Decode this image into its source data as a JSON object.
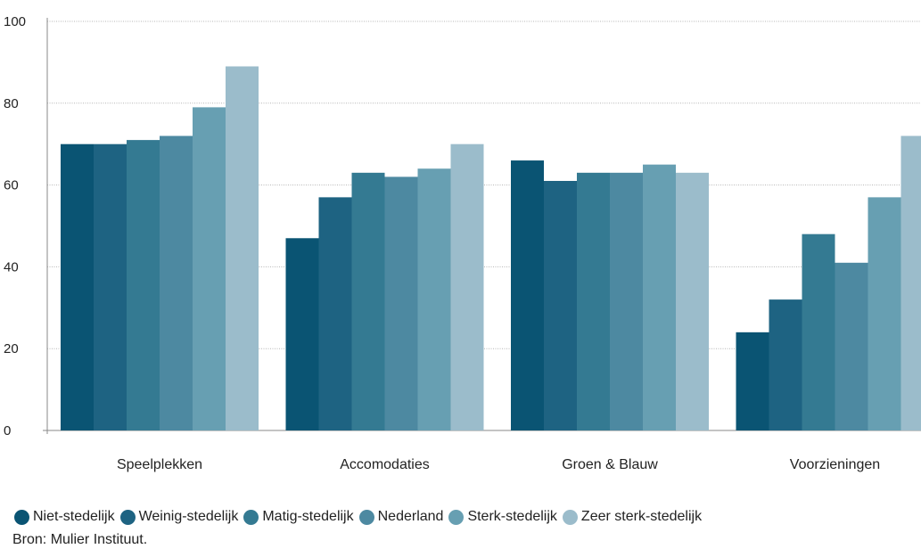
{
  "chart_data": {
    "type": "bar",
    "categories": [
      "Speelplekken",
      "Accomodaties",
      "Groen & Blauw",
      "Voorzieningen"
    ],
    "series": [
      {
        "name": "Niet-stedelijk",
        "color": "#0a5473",
        "values": [
          70,
          47,
          66,
          24
        ]
      },
      {
        "name": "Weinig-stedelijk",
        "color": "#1e6382",
        "values": [
          70,
          57,
          61,
          32
        ]
      },
      {
        "name": "Matig-stedelijk",
        "color": "#347a92",
        "values": [
          71,
          63,
          63,
          48
        ]
      },
      {
        "name": "Nederland",
        "color": "#4d89a1",
        "values": [
          72,
          62,
          63,
          41
        ]
      },
      {
        "name": "Sterk-stedelijk",
        "color": "#679fb2",
        "values": [
          79,
          64,
          65,
          57
        ]
      },
      {
        "name": "Zeer sterk-stedelijk",
        "color": "#9bbccb",
        "values": [
          89,
          70,
          63,
          72
        ]
      }
    ],
    "ylim": [
      0,
      100
    ],
    "yticks": [
      0,
      20,
      40,
      60,
      80,
      100
    ],
    "grid": true,
    "legend_position": "bottom-left"
  },
  "source": "Bron: Mulier Instituut."
}
